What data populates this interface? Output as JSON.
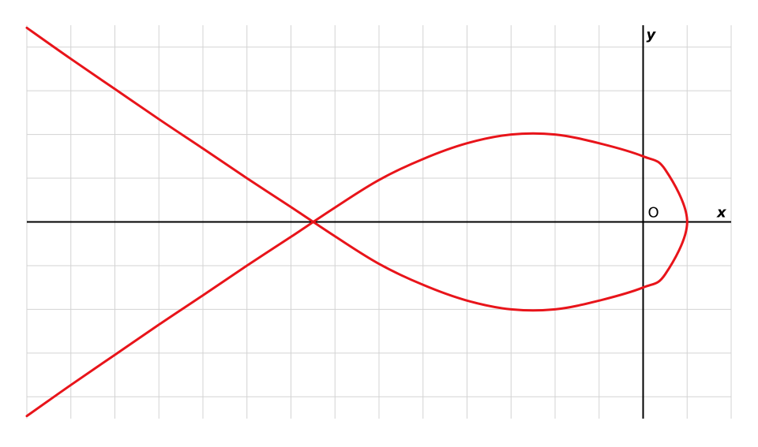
{
  "chart_data": {
    "type": "line",
    "title": "",
    "xlabel": "x",
    "ylabel": "y",
    "origin_label": "O",
    "xlim": [
      -14,
      2
    ],
    "ylim": [
      -4.5,
      4.5
    ],
    "grid": true,
    "colors": {
      "curve": "#e8141a",
      "axes": "#000000",
      "grid": "#d3d3d3"
    },
    "series": [
      {
        "x": [
          -14,
          -13,
          -12,
          -11,
          -10,
          -9,
          -8,
          -7,
          -6,
          -5,
          -4,
          -3,
          -2,
          -1,
          0,
          0.5,
          1,
          0.5,
          0,
          -1,
          -2,
          -3,
          -4,
          -5,
          -6,
          -7,
          -8,
          -9,
          -10,
          -11,
          -12,
          -13,
          -14
        ],
        "y": [
          4.44,
          3.73,
          3.04,
          2.35,
          1.68,
          1.0,
          0.34,
          -0.33,
          -0.96,
          -1.44,
          -1.8,
          -2.0,
          -2.0,
          -1.8,
          -1.5,
          -1.2,
          0.0,
          1.2,
          1.5,
          1.8,
          2.0,
          2.0,
          1.8,
          1.44,
          0.96,
          0.33,
          -0.34,
          -1.0,
          -1.68,
          -2.35,
          -3.04,
          -3.73,
          -4.44
        ]
      }
    ]
  }
}
